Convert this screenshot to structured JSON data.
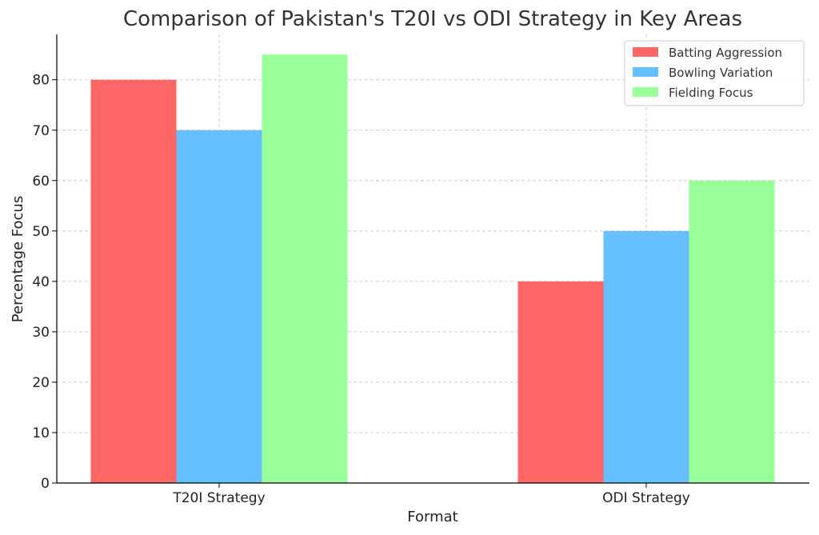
{
  "chart_data": {
    "type": "bar",
    "title": "Comparison of Pakistan's T20I vs ODI Strategy in Key Areas",
    "xlabel": "Format",
    "ylabel": "Percentage Focus",
    "categories": [
      "T20I Strategy",
      "ODI Strategy"
    ],
    "series": [
      {
        "name": "Batting Aggression",
        "values": [
          80,
          40
        ],
        "color": "#ff6666"
      },
      {
        "name": "Bowling Variation",
        "values": [
          70,
          50
        ],
        "color": "#66bfff"
      },
      {
        "name": "Fielding Focus",
        "values": [
          85,
          60
        ],
        "color": "#99ff99"
      }
    ],
    "ylim": [
      0,
      89
    ],
    "yticks": [
      0,
      10,
      20,
      30,
      40,
      50,
      60,
      70,
      80
    ],
    "grid": true,
    "legend_position": "top-right"
  }
}
